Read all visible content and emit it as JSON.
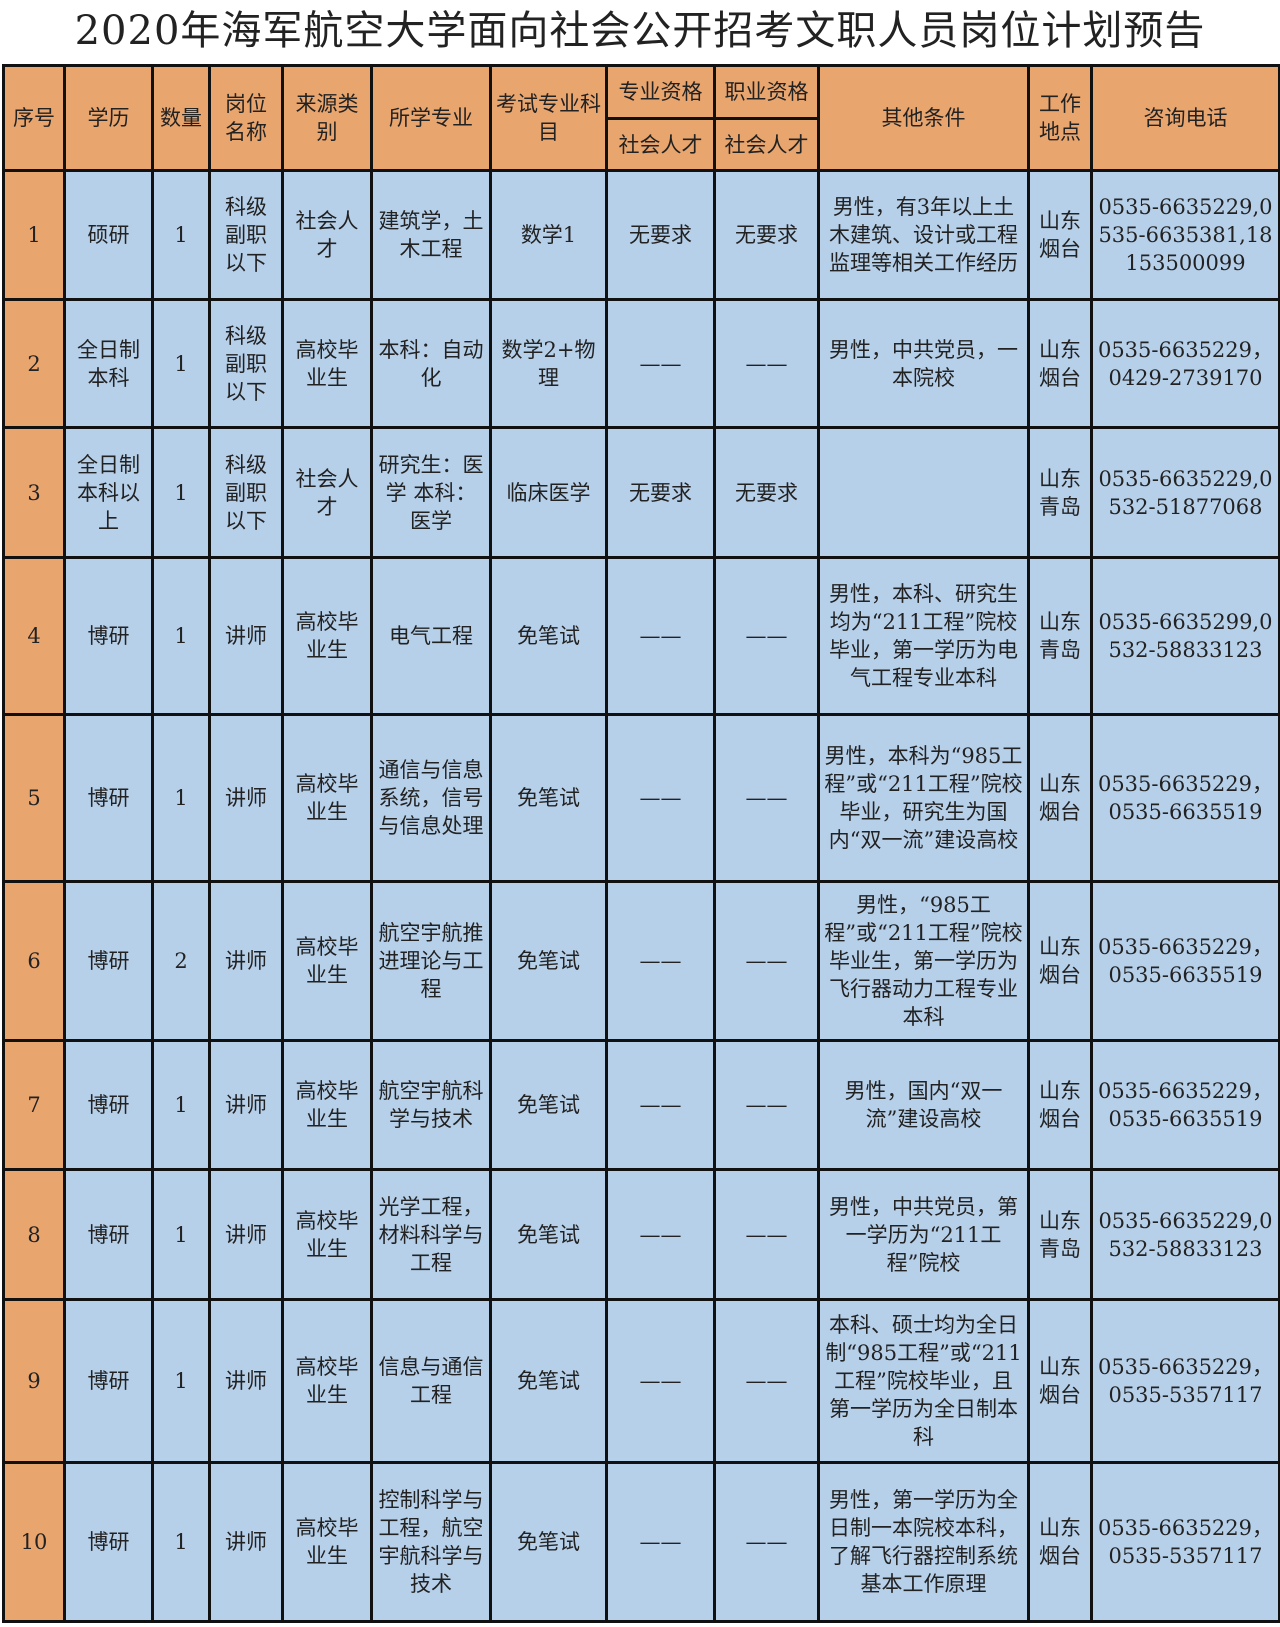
{
  "title": "2020年海军航空大学面向社会公开招考文职人员岗位计划预告",
  "colors": {
    "header_bg": "#E9A56E",
    "body_bg": "#B7D0EA",
    "border": "#111111"
  },
  "headers": {
    "index": "序号",
    "education": "学历",
    "quantity": "数量",
    "position": "岗位名称",
    "source": "来源类别",
    "major": "所学专业",
    "exam": "考试专业科　　目",
    "prof_qual": "专业资格",
    "voc_qual": "职业资格",
    "prof_qual_sub": "社会人才",
    "voc_qual_sub": "社会人才",
    "other": "其他条件",
    "location": "工作地点",
    "phone": "咨询电话"
  },
  "rows": [
    {
      "index": "1",
      "education": "硕研",
      "quantity": "1",
      "position": "科级副职以下",
      "source": "社会人才",
      "major": "建筑学，土木工程",
      "exam": "数学1",
      "prof_qual": "无要求",
      "voc_qual": "无要求",
      "other": "男性，有3年以上土木建筑、设计或工程监理等相关工作经历",
      "location": "山东烟台",
      "phone": "0535-6635229,0535-6635381,18153500099"
    },
    {
      "index": "2",
      "education": "全日制本科",
      "quantity": "1",
      "position": "科级副职以下",
      "source": "高校毕业生",
      "major": "本科：自动化",
      "exam": "数学2+物理",
      "prof_qual": "——",
      "voc_qual": "——",
      "other": "男性，中共党员，一本院校",
      "location": "山东烟台",
      "phone": "0535-6635229，0429-2739170"
    },
    {
      "index": "3",
      "education": "全日制本科以上",
      "quantity": "1",
      "position": "科级副职以下",
      "source": "社会人才",
      "major": "研究生：医学 本科：医学",
      "exam": "临床医学",
      "prof_qual": "无要求",
      "voc_qual": "无要求",
      "other": "",
      "location": "山东青岛",
      "phone": "0535-6635229,0532-51877068"
    },
    {
      "index": "4",
      "education": "博研",
      "quantity": "1",
      "position": "讲师",
      "source": "高校毕业生",
      "major": "电气工程",
      "exam": "免笔试",
      "prof_qual": "——",
      "voc_qual": "——",
      "other": "男性，本科、研究生均为“211工程”院校毕业，第一学历为电气工程专业本科",
      "location": "山东青岛",
      "phone": "0535-6635299,0532-58833123"
    },
    {
      "index": "5",
      "education": "博研",
      "quantity": "1",
      "position": "讲师",
      "source": "高校毕业生",
      "major": "通信与信息系统，信号与信息处理",
      "exam": "免笔试",
      "prof_qual": "——",
      "voc_qual": "——",
      "other": "男性，本科为“985工程”或“211工程”院校毕业，研究生为国内“双一流”建设高校",
      "location": "山东烟台",
      "phone": "0535-6635229，0535-6635519"
    },
    {
      "index": "6",
      "education": "博研",
      "quantity": "2",
      "position": "讲师",
      "source": "高校毕业生",
      "major": "航空宇航推进理论与工程",
      "exam": "免笔试",
      "prof_qual": "——",
      "voc_qual": "——",
      "other": "男性，“985工程”或“211工程”院校毕业生，第一学历为飞行器动力工程专业本科",
      "location": "山东烟台",
      "phone": "0535-6635229，0535-6635519"
    },
    {
      "index": "7",
      "education": "博研",
      "quantity": "1",
      "position": "讲师",
      "source": "高校毕业生",
      "major": "航空宇航科学与技术",
      "exam": "免笔试",
      "prof_qual": "——",
      "voc_qual": "——",
      "other": "男性，国内“双一流”建设高校",
      "location": "山东烟台",
      "phone": "0535-6635229，0535-6635519"
    },
    {
      "index": "8",
      "education": "博研",
      "quantity": "1",
      "position": "讲师",
      "source": "高校毕业生",
      "major": "光学工程，材料科学与工程",
      "exam": "免笔试",
      "prof_qual": "——",
      "voc_qual": "——",
      "other": "男性，中共党员，第一学历为“211工程”院校",
      "location": "山东青岛",
      "phone": "0535-6635229,0532-58833123"
    },
    {
      "index": "9",
      "education": "博研",
      "quantity": "1",
      "position": "讲师",
      "source": "高校毕业生",
      "major": "信息与通信工程",
      "exam": "免笔试",
      "prof_qual": "——",
      "voc_qual": "——",
      "other": "本科、硕士均为全日制“985工程”或“211工程”院校毕业，且第一学历为全日制本科",
      "location": "山东烟台",
      "phone": "0535-6635229，0535-5357117"
    },
    {
      "index": "10",
      "education": "博研",
      "quantity": "1",
      "position": "讲师",
      "source": "高校毕业生",
      "major": "控制科学与工程，航空宇航科学与技术",
      "exam": "免笔试",
      "prof_qual": "——",
      "voc_qual": "——",
      "other": "男性，第一学历为全日制一本院校本科，了解飞行器控制系统基本工作原理",
      "location": "山东烟台",
      "phone": "0535-6635229，0535-5357117"
    }
  ]
}
